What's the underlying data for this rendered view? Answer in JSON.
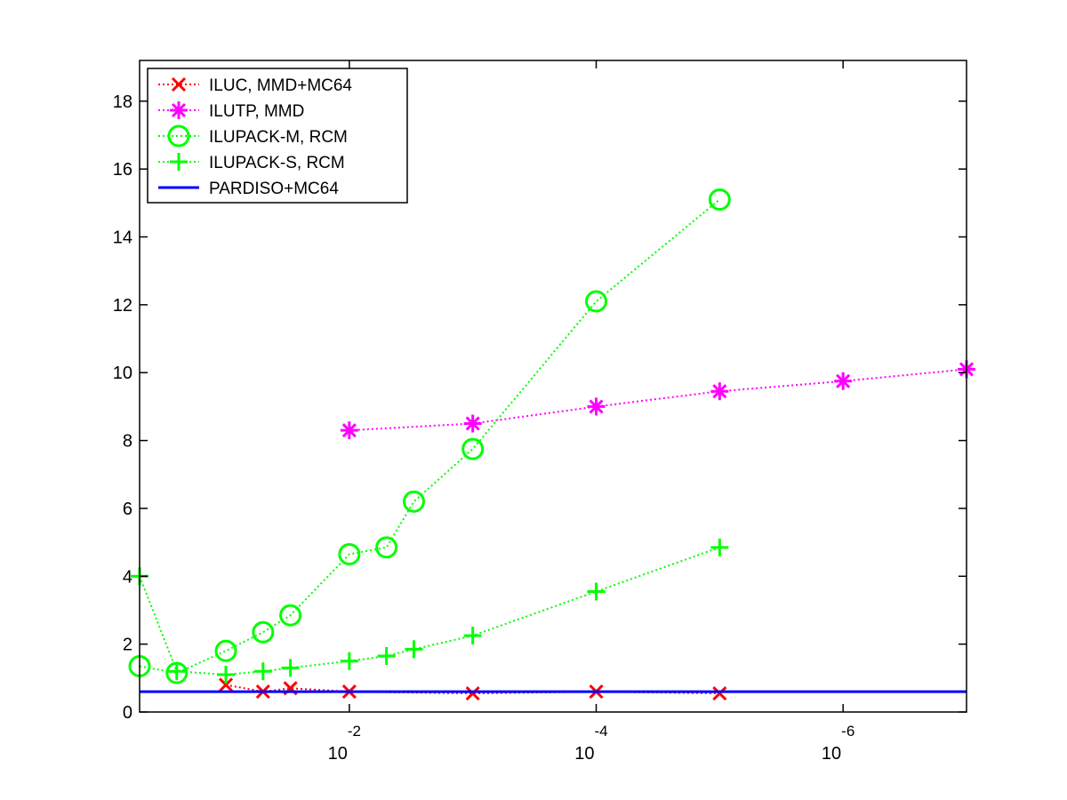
{
  "chart_data": {
    "type": "line",
    "title": "",
    "xlabel": "",
    "ylabel": "",
    "x_scale": "log",
    "x_reversed": true,
    "xlim": [
      0.5,
      1e-07
    ],
    "ylim": [
      0,
      19.2
    ],
    "grid": false,
    "legend_position": "top-left",
    "x_ticks": [
      {
        "base": "10",
        "exp": "-2",
        "value": 0.01
      },
      {
        "base": "10",
        "exp": "-4",
        "value": 0.0001
      },
      {
        "base": "10",
        "exp": "-6",
        "value": 1e-06
      }
    ],
    "y_ticks": [
      "0",
      "2",
      "4",
      "6",
      "8",
      "10",
      "12",
      "14",
      "16",
      "18"
    ],
    "series": [
      {
        "name": "ILUC, MMD+MC64",
        "color": "#ff0000",
        "marker": "x",
        "line_style": "dotted",
        "x": [
          0.1,
          0.05,
          0.03,
          0.01,
          0.001,
          0.0001,
          1e-05
        ],
        "y": [
          0.8,
          0.6,
          0.7,
          0.6,
          0.55,
          0.6,
          0.55
        ]
      },
      {
        "name": "ILUTP, MMD",
        "color": "#ff00ff",
        "marker": "asterisk",
        "line_style": "dotted",
        "x": [
          0.01,
          0.001,
          0.0001,
          1e-05,
          1e-06,
          1e-07
        ],
        "y": [
          8.3,
          8.5,
          9.0,
          9.45,
          9.75,
          10.1
        ]
      },
      {
        "name": "ILUPACK-M, RCM",
        "color": "#00ff00",
        "marker": "circle",
        "line_style": "dotted",
        "x": [
          0.5,
          0.25,
          0.1,
          0.05,
          0.03,
          0.01,
          0.005,
          0.003,
          0.001,
          0.0001,
          1e-05
        ],
        "y": [
          1.35,
          1.15,
          1.8,
          2.35,
          2.85,
          4.65,
          4.85,
          6.2,
          7.75,
          12.1,
          15.1
        ]
      },
      {
        "name": "ILUPACK-S, RCM",
        "color": "#00ff00",
        "marker": "plus",
        "line_style": "dotted",
        "x": [
          0.5,
          0.25,
          0.1,
          0.05,
          0.03,
          0.01,
          0.005,
          0.003,
          0.001,
          0.0001,
          1e-05
        ],
        "y": [
          4.0,
          1.2,
          1.1,
          1.2,
          1.3,
          1.5,
          1.65,
          1.85,
          2.25,
          3.55,
          4.85
        ]
      },
      {
        "name": "PARDISO+MC64",
        "color": "#0000ff",
        "marker": "none",
        "line_style": "solid",
        "x": [
          0.5,
          1e-07
        ],
        "y": [
          0.6,
          0.6
        ]
      }
    ]
  }
}
